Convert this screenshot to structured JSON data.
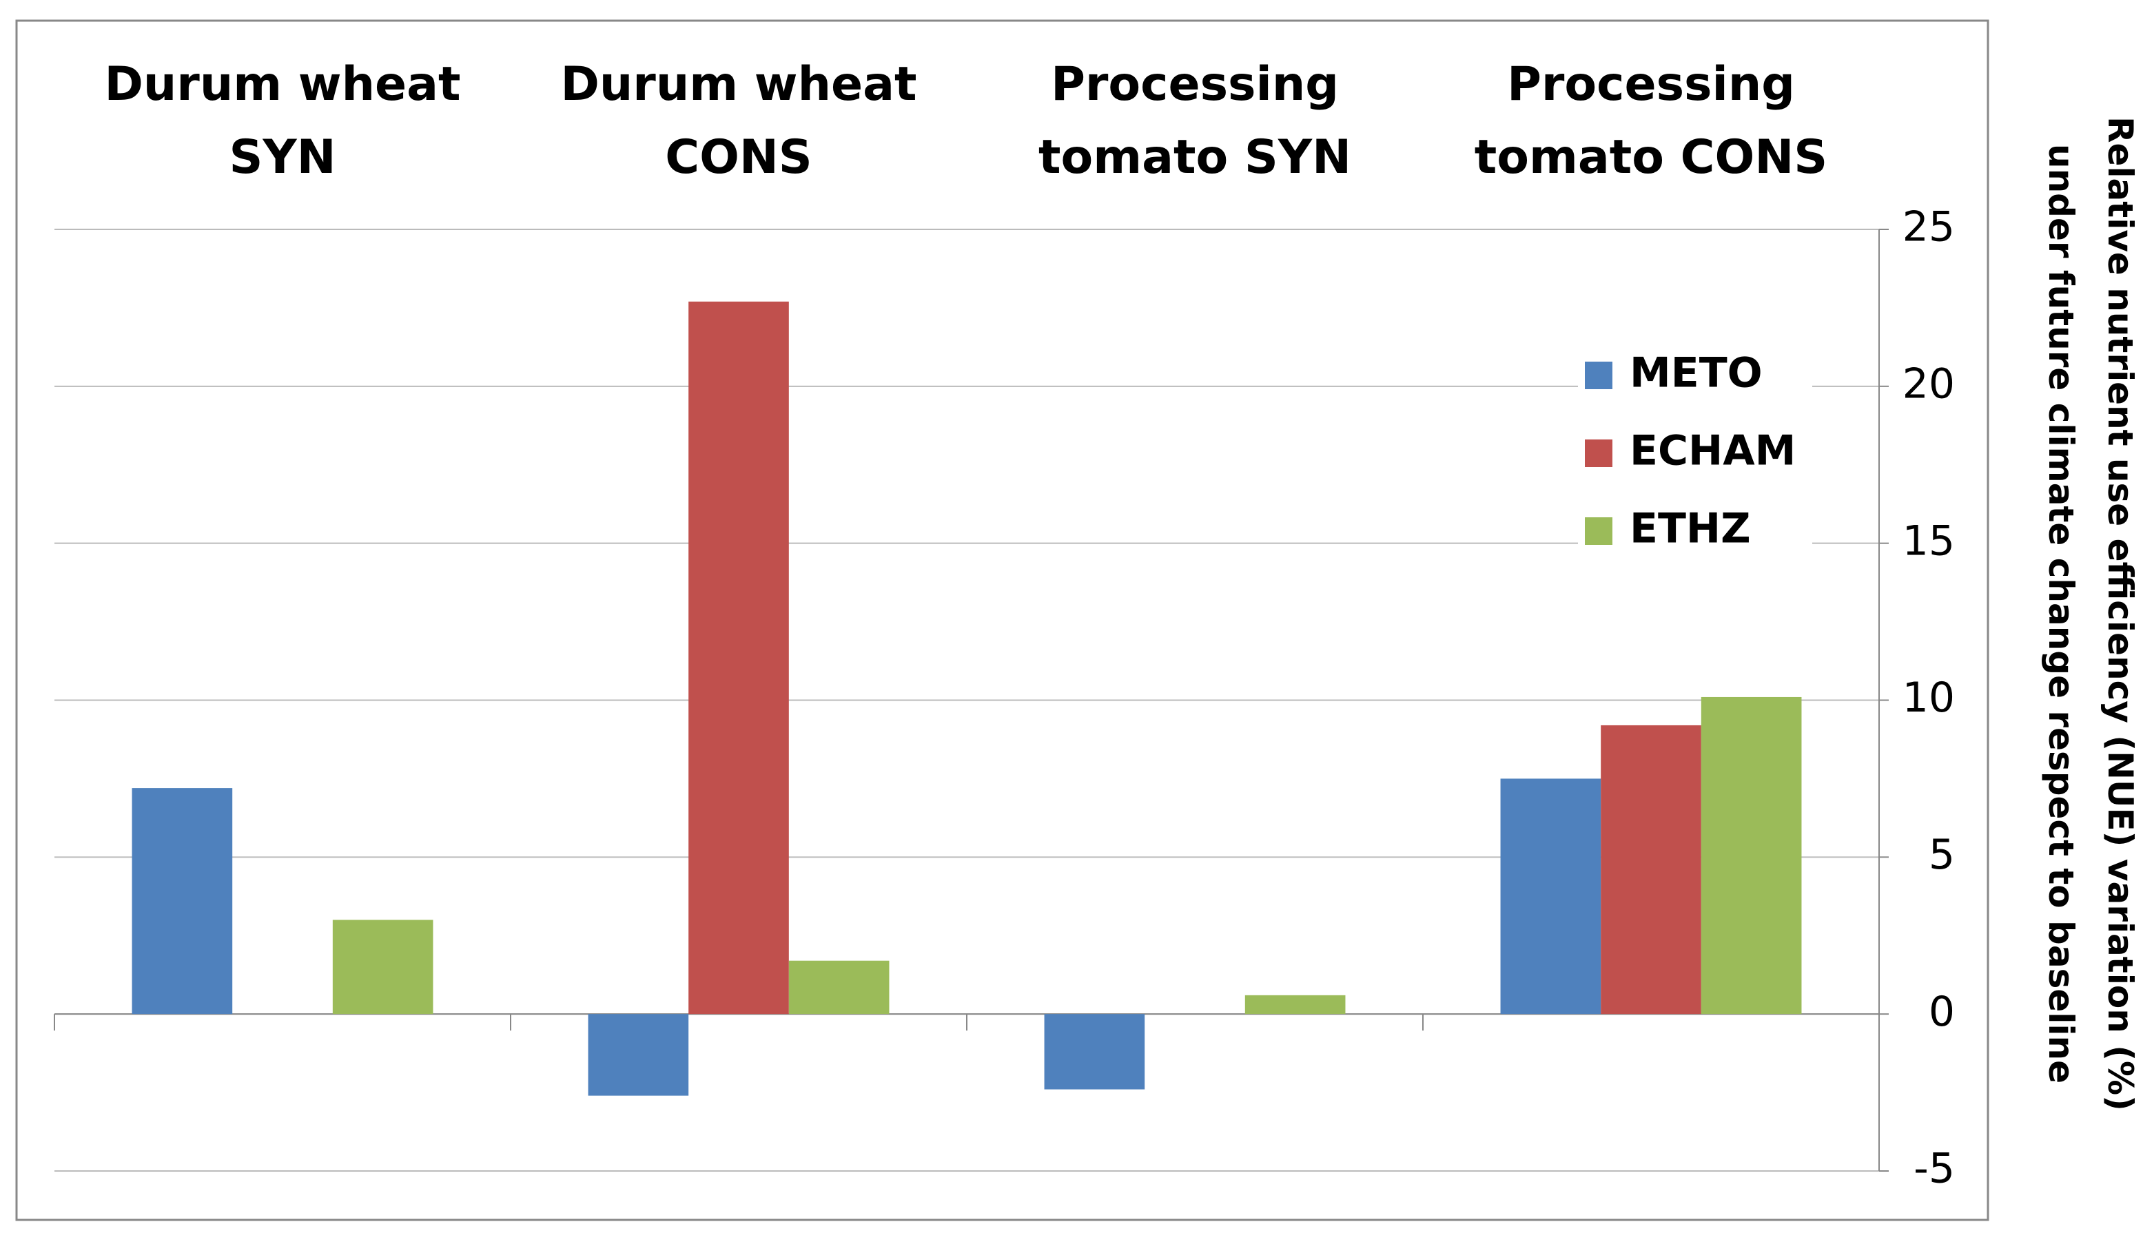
{
  "chart_data": {
    "type": "bar",
    "y_label": "Relative nutrient use efficiency (NUE) variation (%) under future climate change respect to baseline",
    "categories": [
      "Durum wheat SYN",
      "Durum wheat CONS",
      "Processing tomato SYN",
      "Processing tomato CONS"
    ],
    "series": [
      {
        "name": "METO",
        "color": "#4f81bd",
        "values": [
          7.2,
          -2.6,
          -2.4,
          7.5
        ]
      },
      {
        "name": "ECHAM",
        "color": "#c0504d",
        "values": [
          0,
          22.7,
          0,
          9.2
        ]
      },
      {
        "name": "ETHZ",
        "color": "#9bbb59",
        "values": [
          3.0,
          1.7,
          0.6,
          10.1
        ]
      }
    ],
    "ylim": [
      -5,
      25
    ],
    "yticks": [
      -5,
      0,
      5,
      10,
      15,
      20,
      25
    ],
    "grid": true
  }
}
